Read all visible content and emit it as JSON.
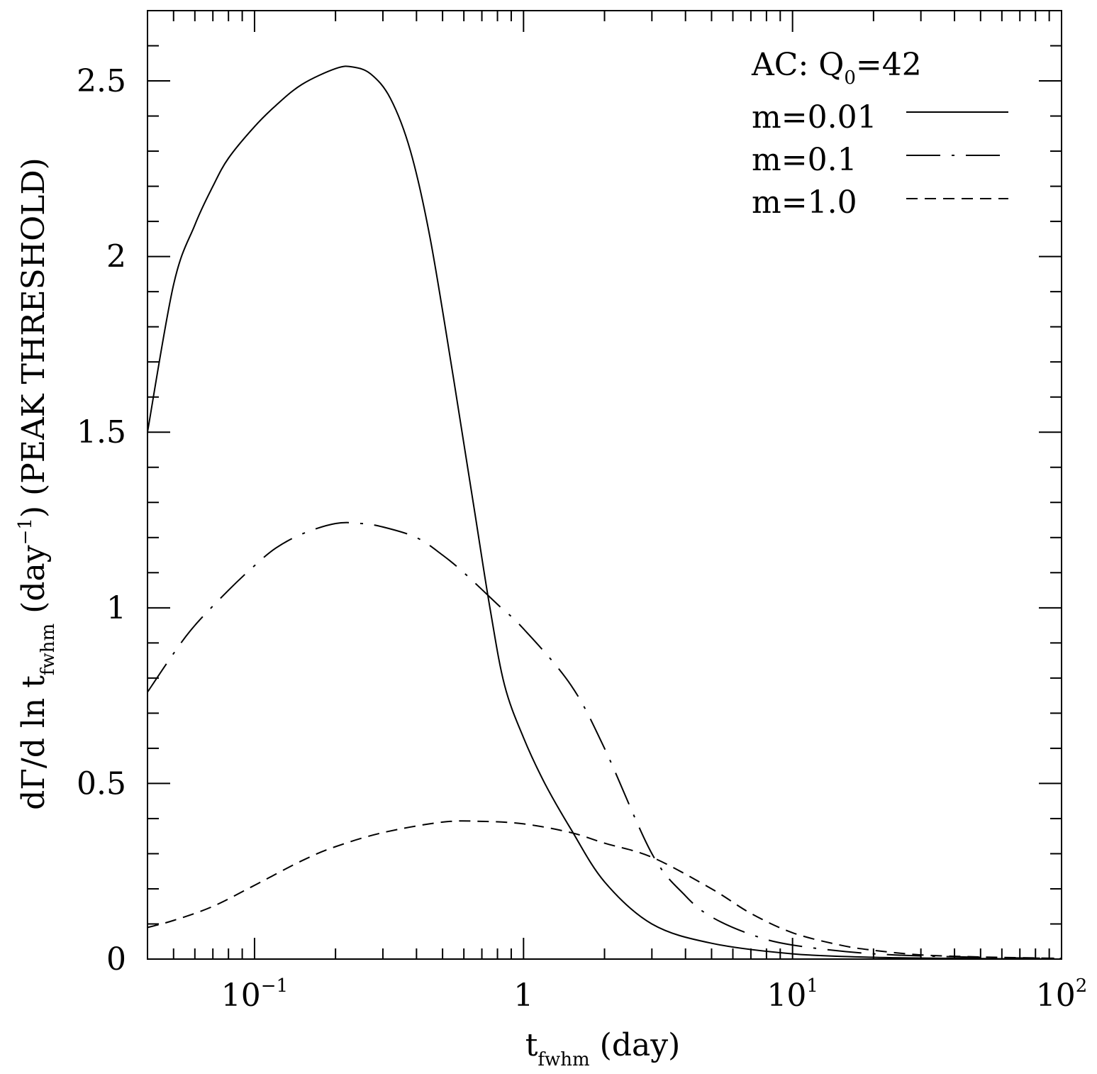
{
  "chart_data": {
    "type": "line",
    "xscale": "log",
    "xlim": [
      0.04,
      100
    ],
    "ylim": [
      0,
      2.7
    ],
    "grid": false,
    "legend_position": "top-right",
    "xticks": [
      {
        "value": 0.1,
        "base": "10",
        "exp": "−1"
      },
      {
        "value": 1,
        "base": "1",
        "exp": ""
      },
      {
        "value": 10,
        "base": "10",
        "exp": "1"
      },
      {
        "value": 100,
        "base": "10",
        "exp": "2"
      }
    ],
    "yticks": [
      {
        "value": 0,
        "label": "0"
      },
      {
        "value": 0.5,
        "label": "0.5"
      },
      {
        "value": 1,
        "label": "1"
      },
      {
        "value": 1.5,
        "label": "1.5"
      },
      {
        "value": 2,
        "label": "2"
      },
      {
        "value": 2.5,
        "label": "2.5"
      }
    ],
    "xlabel": {
      "main": "t",
      "sub": "fwhm",
      "rest": " (day)"
    },
    "ylabel": {
      "part1": "dΓ/d ln t",
      "sub": "fwhm",
      "part2": " (day",
      "sup": "−1",
      "part3": ") (PEAK THRESHOLD)"
    },
    "legend_title": {
      "main": "AC:  Q",
      "sub": "0",
      "rest": "=42"
    },
    "series": [
      {
        "name": "m=0.01",
        "style": "solid",
        "points": [
          [
            0.04,
            1.5
          ],
          [
            0.05,
            1.92
          ],
          [
            0.06,
            2.09
          ],
          [
            0.07,
            2.2
          ],
          [
            0.08,
            2.28
          ],
          [
            0.1,
            2.37
          ],
          [
            0.12,
            2.43
          ],
          [
            0.15,
            2.49
          ],
          [
            0.2,
            2.535
          ],
          [
            0.23,
            2.54
          ],
          [
            0.27,
            2.52
          ],
          [
            0.32,
            2.45
          ],
          [
            0.38,
            2.3
          ],
          [
            0.45,
            2.05
          ],
          [
            0.55,
            1.65
          ],
          [
            0.65,
            1.3
          ],
          [
            0.75,
            1.0
          ],
          [
            0.85,
            0.78
          ],
          [
            1.0,
            0.63
          ],
          [
            1.2,
            0.5
          ],
          [
            1.5,
            0.37
          ],
          [
            2.0,
            0.22
          ],
          [
            3.0,
            0.1
          ],
          [
            5.0,
            0.045
          ],
          [
            10,
            0.015
          ],
          [
            20,
            0.005
          ],
          [
            40,
            0.002
          ],
          [
            100,
            0.0
          ]
        ]
      },
      {
        "name": "m=0.1",
        "style": "longdash",
        "points": [
          [
            0.04,
            0.76
          ],
          [
            0.05,
            0.87
          ],
          [
            0.06,
            0.95
          ],
          [
            0.08,
            1.05
          ],
          [
            0.1,
            1.12
          ],
          [
            0.12,
            1.17
          ],
          [
            0.15,
            1.21
          ],
          [
            0.2,
            1.24
          ],
          [
            0.25,
            1.24
          ],
          [
            0.3,
            1.23
          ],
          [
            0.4,
            1.2
          ],
          [
            0.5,
            1.15
          ],
          [
            0.6,
            1.1
          ],
          [
            0.8,
            1.01
          ],
          [
            1.0,
            0.94
          ],
          [
            1.5,
            0.78
          ],
          [
            2.0,
            0.6
          ],
          [
            3.0,
            0.3
          ],
          [
            4.0,
            0.18
          ],
          [
            5.0,
            0.12
          ],
          [
            7.0,
            0.07
          ],
          [
            10,
            0.04
          ],
          [
            20,
            0.015
          ],
          [
            50,
            0.005
          ],
          [
            100,
            0.002
          ]
        ]
      },
      {
        "name": "m=1.0",
        "style": "shortdash",
        "points": [
          [
            0.04,
            0.09
          ],
          [
            0.05,
            0.11
          ],
          [
            0.07,
            0.15
          ],
          [
            0.1,
            0.21
          ],
          [
            0.15,
            0.28
          ],
          [
            0.2,
            0.32
          ],
          [
            0.3,
            0.36
          ],
          [
            0.5,
            0.39
          ],
          [
            0.7,
            0.392
          ],
          [
            1.0,
            0.385
          ],
          [
            1.5,
            0.36
          ],
          [
            2.0,
            0.33
          ],
          [
            3.0,
            0.29
          ],
          [
            5.0,
            0.2
          ],
          [
            7.0,
            0.13
          ],
          [
            10,
            0.075
          ],
          [
            15,
            0.04
          ],
          [
            20,
            0.025
          ],
          [
            30,
            0.012
          ],
          [
            50,
            0.006
          ],
          [
            100,
            0.002
          ]
        ]
      }
    ]
  }
}
